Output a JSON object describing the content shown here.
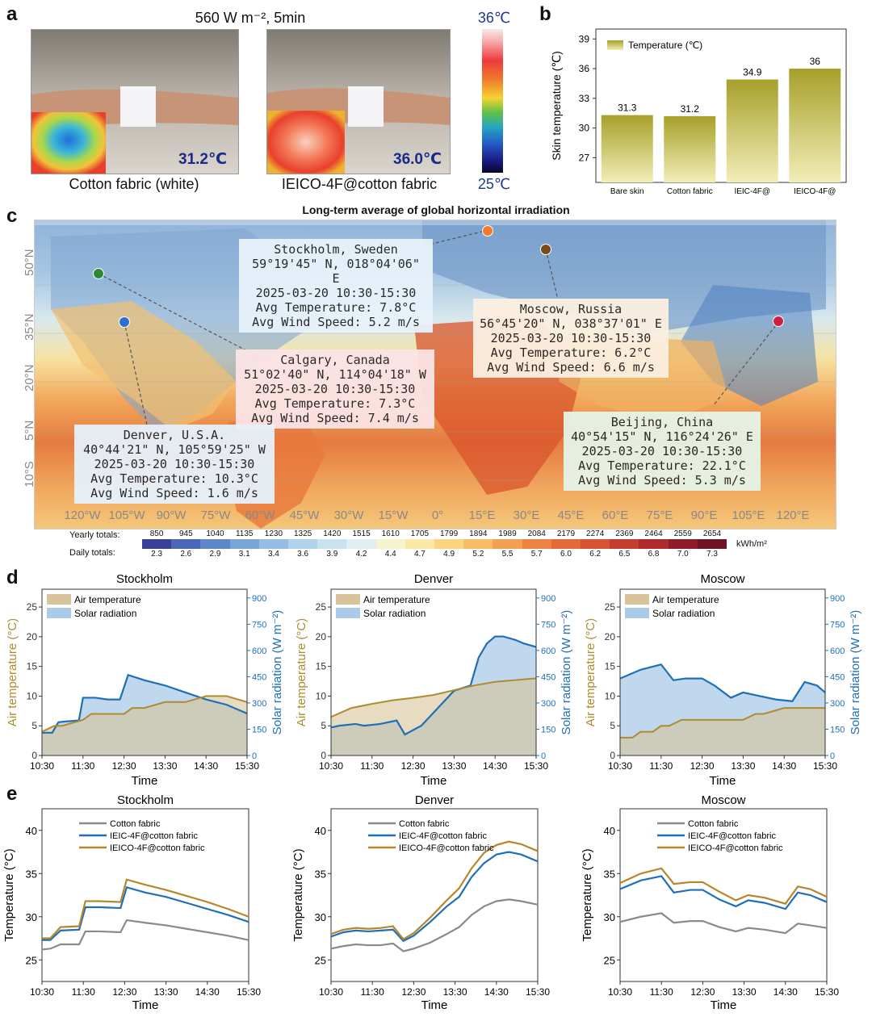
{
  "panel_a": {
    "label": "a",
    "title": "560 W m⁻², 5min",
    "left_photo": {
      "reading": "31.2℃",
      "caption": "Cotton fabric (white)"
    },
    "right_photo": {
      "reading": "36.0℃",
      "caption": "IEICO-4F@cotton fabric"
    },
    "colorbar": {
      "max": "36℃",
      "min": "25℃"
    }
  },
  "panel_b": {
    "label": "b",
    "chart_data": {
      "type": "bar",
      "title": "",
      "ylabel": "Skin temperature (℃)",
      "legend": "Temperature (℃)",
      "categories": [
        "Bare skin",
        "Cotton fabric",
        "IEIC-4F@",
        "IEICO-4F@"
      ],
      "values": [
        31.3,
        31.2,
        34.9,
        36
      ],
      "value_labels": [
        "31.3",
        "31.2",
        "34.9",
        "36"
      ],
      "ylim": [
        24.5,
        40
      ],
      "yticks": [
        27,
        30,
        33,
        36,
        39
      ]
    }
  },
  "panel_c": {
    "label": "c",
    "title": "Long-term average of global horizontal irradiation",
    "lat_labels": [
      "50°N",
      "35°N",
      "20°N",
      "5°N",
      "10°S"
    ],
    "lon_labels": [
      "120°W",
      "105°W",
      "90°W",
      "75°W",
      "60°W",
      "45°W",
      "30°W",
      "15°W",
      "0°",
      "15°E",
      "30°E",
      "45°E",
      "60°E",
      "75°E",
      "90°E",
      "105°E",
      "120°E"
    ],
    "locations": [
      {
        "id": "stockholm",
        "name": "Stockholm, Sweden",
        "coords": "59°19'45\" N, 018°04'06\" E",
        "time": "2025-03-20 10:30-15:30",
        "temp": "Avg Temperature: 7.8°C",
        "wind": "Avg Wind Speed: 5.2 m/s",
        "color": "#e8f2fb",
        "dot": "#f07a30"
      },
      {
        "id": "moscow",
        "name": "Moscow, Russia",
        "coords": "56°45'20\" N, 038°37'01\" E",
        "time": "2025-03-20 10:30-15:30",
        "temp": "Avg Temperature: 6.2°C",
        "wind": "Avg Wind Speed: 6.6 m/s",
        "color": "#fcefe0",
        "dot": "#7a4a1a"
      },
      {
        "id": "calgary",
        "name": "Calgary, Canada",
        "coords": "51°02'40\" N, 114°04'18\" W",
        "time": "2025-03-20 10:30-15:30",
        "temp": "Avg Temperature: 7.3°C",
        "wind": "Avg Wind Speed: 7.4 m/s",
        "color": "#fbe4e6",
        "dot": "#2a8a3a"
      },
      {
        "id": "denver",
        "name": "Denver, U.S.A.",
        "coords": "40°44'21\" N, 105°59'25\" W",
        "time": "2025-03-20 10:30-15:30",
        "temp": "Avg Temperature: 10.3°C",
        "wind": "Avg Wind Speed: 1.6 m/s",
        "color": "#e6f1fb",
        "dot": "#2f6fd0"
      },
      {
        "id": "beijing",
        "name": "Beijing, China",
        "coords": "40°54'15\" N, 116°24'26\" E",
        "time": "2025-03-20 10:30-15:30",
        "temp": "Avg Temperature: 22.1°C",
        "wind": "Avg Wind Speed: 5.3 m/s",
        "color": "#e6f4e8",
        "dot": "#d02040"
      }
    ],
    "legend": {
      "yearly_label": "Yearly totals:",
      "daily_label": "Daily totals:",
      "unit": "kWh/m²",
      "yearly": [
        "850",
        "945",
        "1040",
        "1135",
        "1230",
        "1325",
        "1420",
        "1515",
        "1610",
        "1705",
        "1799",
        "1894",
        "1989",
        "2084",
        "2179",
        "2274",
        "2369",
        "2464",
        "2559",
        "2654"
      ],
      "daily": [
        "2.3",
        "2.6",
        "2.9",
        "3.1",
        "3.4",
        "3.6",
        "3.9",
        "4.2",
        "4.4",
        "4.7",
        "4.9",
        "5.2",
        "5.5",
        "5.7",
        "6.0",
        "6.2",
        "6.5",
        "6.8",
        "7.0",
        "7.3"
      ],
      "colors": [
        "#3a3f9a",
        "#4a66b8",
        "#5f86c8",
        "#7aa3d6",
        "#95bde2",
        "#b0d2ea",
        "#c9e2f0",
        "#e0eef2",
        "#f6f3cf",
        "#fbe7a6",
        "#fbd482",
        "#f9bd66",
        "#f4a052",
        "#ee8444",
        "#e56a3a",
        "#d85234",
        "#c53c30",
        "#ae2a2c",
        "#8e1c2a",
        "#6e1424"
      ]
    }
  },
  "panel_d": {
    "label": "d",
    "chart_data": [
      {
        "type": "area",
        "title": "Stockholm",
        "xlabel": "Time",
        "ylabel_left": "Air temperature (°C)",
        "ylabel_right": "Solar radiation (W m⁻²)",
        "legend": [
          "Air temperature",
          "Solar radiation"
        ],
        "xticks": [
          "10:30",
          "11:30",
          "12:30",
          "13:30",
          "14:30",
          "15:30"
        ],
        "ylim_left": [
          0,
          28
        ],
        "yticks_left": [
          0,
          5,
          10,
          15,
          20,
          25
        ],
        "ylim_right": [
          0,
          950
        ],
        "yticks_right": [
          0,
          150,
          300,
          450,
          600,
          750,
          900
        ],
        "temp_t": [
          0,
          0.3,
          0.5,
          1,
          1.2,
          1.5,
          2,
          2.2,
          2.5,
          3,
          3.3,
          3.5,
          4,
          4.3,
          4.5,
          5
        ],
        "temp": [
          4,
          5,
          5,
          6,
          7,
          7,
          7,
          8,
          8,
          9,
          9,
          9,
          10,
          10,
          10,
          9
        ],
        "solar_t": [
          0,
          0.25,
          0.4,
          0.6,
          0.9,
          1,
          1.3,
          1.6,
          1.9,
          2.1,
          2.5,
          3,
          3.5,
          4,
          4.5,
          5
        ],
        "solar": [
          130,
          130,
          190,
          195,
          200,
          330,
          330,
          320,
          320,
          460,
          430,
          400,
          360,
          320,
          290,
          240
        ]
      },
      {
        "type": "area",
        "title": "Denver",
        "xlabel": "Time",
        "ylabel_left": "Air temperature (°C)",
        "ylabel_right": "Solar radiation (W m⁻²)",
        "legend": [
          "Air temperature",
          "Solar radiation"
        ],
        "xticks": [
          "10:30",
          "11:30",
          "12:30",
          "13:30",
          "14:30",
          "15:30"
        ],
        "ylim_left": [
          0,
          28
        ],
        "yticks_left": [
          0,
          5,
          10,
          15,
          20,
          25
        ],
        "ylim_right": [
          0,
          950
        ],
        "yticks_right": [
          0,
          150,
          300,
          450,
          600,
          750,
          900
        ],
        "temp_t": [
          0,
          0.5,
          1,
          1.5,
          2,
          2.5,
          3,
          3.5,
          4,
          4.5,
          5
        ],
        "temp": [
          6.5,
          8,
          8.7,
          9.3,
          9.7,
          10.2,
          11,
          11.8,
          12.4,
          12.7,
          13
        ],
        "solar_t": [
          0,
          0.2,
          0.6,
          0.8,
          1.2,
          1.6,
          1.8,
          2.2,
          2.6,
          3,
          3.4,
          3.6,
          3.8,
          4,
          4.2,
          4.5,
          4.7,
          5
        ],
        "solar": [
          160,
          170,
          180,
          170,
          180,
          200,
          120,
          170,
          270,
          370,
          400,
          560,
          640,
          680,
          680,
          660,
          640,
          620
        ]
      },
      {
        "type": "area",
        "title": "Moscow",
        "xlabel": "Time",
        "ylabel_left": "Air temperature (°C)",
        "ylabel_right": "Solar radiation (W m⁻²)",
        "legend": [
          "Air temperature",
          "Solar radiation"
        ],
        "xticks": [
          "10:30",
          "11:30",
          "12:30",
          "13:30",
          "14:30",
          "15:30"
        ],
        "ylim_left": [
          0,
          28
        ],
        "yticks_left": [
          0,
          5,
          10,
          15,
          20,
          25
        ],
        "ylim_right": [
          0,
          950
        ],
        "yticks_right": [
          0,
          150,
          300,
          450,
          600,
          750,
          900
        ],
        "temp_t": [
          0,
          0.3,
          0.5,
          0.8,
          1,
          1.2,
          1.5,
          2,
          2.5,
          3,
          3.3,
          3.5,
          4,
          4.3,
          4.6,
          5
        ],
        "temp": [
          3,
          3,
          4,
          4,
          5,
          5,
          6,
          6,
          6,
          6,
          7,
          7,
          8,
          8,
          8,
          8
        ],
        "solar_t": [
          0,
          0.5,
          1,
          1.3,
          1.6,
          2,
          2.3,
          2.7,
          3,
          3.4,
          3.8,
          4.2,
          4.5,
          4.8,
          5
        ],
        "solar": [
          440,
          490,
          520,
          430,
          440,
          440,
          400,
          330,
          360,
          340,
          320,
          310,
          420,
          400,
          360
        ]
      }
    ]
  },
  "panel_e": {
    "label": "e",
    "chart_data": [
      {
        "type": "line",
        "title": "Stockholm",
        "xlabel": "Time",
        "ylabel": "Temperature (°C)",
        "xticks": [
          "10:30",
          "11:30",
          "12:30",
          "13:30",
          "14:30",
          "15:30"
        ],
        "ylim": [
          22.5,
          42.5
        ],
        "yticks": [
          25,
          30,
          35,
          40
        ],
        "x": [
          0,
          0.2,
          0.45,
          0.9,
          1.05,
          1.4,
          1.9,
          2.05,
          2.5,
          3,
          3.5,
          4,
          4.5,
          5
        ],
        "series": [
          {
            "name": "Cotton fabric",
            "color": "#8a8a8a",
            "values": [
              26.2,
              26.3,
              26.8,
              26.8,
              28.3,
              28.3,
              28.2,
              29.6,
              29.3,
              29.0,
              28.6,
              28.2,
              27.8,
              27.3
            ]
          },
          {
            "name": "IEIC-4F@cotton fabric",
            "color": "#1f6fb5",
            "values": [
              27.3,
              27.3,
              28.4,
              28.5,
              31.1,
              31.1,
              31.0,
              33.4,
              32.8,
              32.3,
              31.6,
              30.9,
              30.2,
              29.4
            ]
          },
          {
            "name": "IEICO-4F@cotton fabric",
            "color": "#b8862a",
            "values": [
              27.5,
              27.5,
              28.8,
              28.9,
              31.8,
              31.8,
              31.7,
              34.3,
              33.7,
              33.1,
              32.4,
              31.7,
              30.9,
              30.0
            ]
          }
        ]
      },
      {
        "type": "line",
        "title": "Denver",
        "xlabel": "Time",
        "ylabel": "Temperature (°C)",
        "xticks": [
          "10:30",
          "11:30",
          "12:30",
          "13:30",
          "14:30",
          "15:30"
        ],
        "ylim": [
          22.5,
          42.5
        ],
        "yticks": [
          25,
          30,
          35,
          40
        ],
        "x": [
          0,
          0.3,
          0.6,
          0.9,
          1.2,
          1.5,
          1.75,
          2,
          2.4,
          2.8,
          3.1,
          3.4,
          3.7,
          4,
          4.3,
          4.6,
          5
        ],
        "series": [
          {
            "name": "Cotton fabric",
            "color": "#8a8a8a",
            "values": [
              26.3,
              26.6,
              26.8,
              26.7,
              26.7,
              26.9,
              26.0,
              26.3,
              27.0,
              28.0,
              28.8,
              30.2,
              31.2,
              31.8,
              32.0,
              31.8,
              31.4
            ]
          },
          {
            "name": "IEIC-4F@cotton fabric",
            "color": "#1f6fb5",
            "values": [
              27.7,
              28.2,
              28.4,
              28.3,
              28.4,
              28.5,
              27.2,
              27.8,
              29.4,
              31.2,
              32.3,
              34.6,
              36.2,
              37.2,
              37.5,
              37.2,
              36.4
            ]
          },
          {
            "name": "IEICO-4F@cotton fabric",
            "color": "#b8862a",
            "values": [
              28.0,
              28.5,
              28.7,
              28.6,
              28.7,
              28.9,
              27.4,
              28.1,
              29.9,
              31.9,
              33.3,
              35.6,
              37.4,
              38.3,
              38.7,
              38.4,
              37.6
            ]
          }
        ]
      },
      {
        "type": "line",
        "title": "Moscow",
        "xlabel": "Time",
        "ylabel": "Temperature (°C)",
        "xticks": [
          "10:30",
          "11:30",
          "12:30",
          "13:30",
          "14:30",
          "15:30"
        ],
        "ylim": [
          22.5,
          42.5
        ],
        "yticks": [
          25,
          30,
          35,
          40
        ],
        "x": [
          0,
          0.5,
          1,
          1.3,
          1.7,
          2,
          2.4,
          2.8,
          3.1,
          3.5,
          4,
          4.3,
          4.6,
          5
        ],
        "series": [
          {
            "name": "Cotton fabric",
            "color": "#8a8a8a",
            "values": [
              29.4,
              30.0,
              30.4,
              29.3,
              29.5,
              29.5,
              28.8,
              28.3,
              28.7,
              28.5,
              28.1,
              29.2,
              29.0,
              28.7
            ]
          },
          {
            "name": "IEIC-4F@cotton fabric",
            "color": "#1f6fb5",
            "values": [
              33.2,
              34.2,
              34.7,
              32.8,
              33.1,
              33.1,
              32.0,
              31.2,
              31.9,
              31.6,
              30.9,
              32.8,
              32.5,
              31.7
            ]
          },
          {
            "name": "IEICO-4F@cotton fabric",
            "color": "#b8862a",
            "values": [
              33.9,
              35.0,
              35.6,
              33.8,
              34.0,
              34.0,
              32.9,
              31.9,
              32.5,
              32.2,
              31.5,
              33.5,
              33.2,
              32.3
            ]
          }
        ]
      }
    ]
  }
}
